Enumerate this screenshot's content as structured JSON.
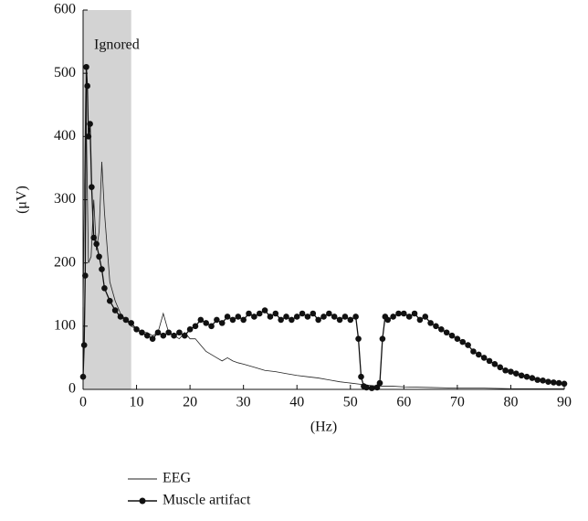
{
  "chart_data": {
    "type": "line",
    "xlabel": "(Hz)",
    "ylabel": "(μV)",
    "shaded_region": {
      "x": [
        0,
        9
      ],
      "label": "Ignored",
      "color": "#d3d3d3"
    },
    "xlim": [
      0,
      90
    ],
    "xticks": [
      0,
      10,
      20,
      30,
      40,
      50,
      60,
      70,
      80,
      90
    ],
    "ylim": [
      0,
      600
    ],
    "yticks": [
      0,
      100,
      200,
      300,
      400,
      500,
      600
    ],
    "series": [
      {
        "name": "EEG",
        "color": "#222222",
        "marker": false,
        "x": [
          0,
          0.5,
          1,
          1.5,
          2,
          2.5,
          3,
          3.5,
          4,
          5,
          6,
          7,
          8,
          9,
          10,
          11,
          12,
          13,
          14,
          15,
          16,
          17,
          18,
          19,
          20,
          21,
          22,
          23,
          24,
          25,
          26,
          27,
          28,
          29,
          30,
          32,
          34,
          36,
          38,
          40,
          42,
          44,
          46,
          48,
          50,
          52,
          54,
          56,
          58,
          60,
          65,
          70,
          75,
          80,
          85,
          90
        ],
        "values": [
          130,
          480,
          200,
          210,
          300,
          220,
          250,
          360,
          280,
          170,
          140,
          120,
          110,
          100,
          95,
          90,
          90,
          85,
          90,
          120,
          90,
          85,
          80,
          90,
          80,
          80,
          70,
          60,
          55,
          50,
          45,
          50,
          45,
          42,
          40,
          35,
          30,
          28,
          25,
          22,
          20,
          18,
          15,
          12,
          10,
          8,
          6,
          5,
          5,
          4,
          3,
          2,
          2,
          1,
          1,
          1
        ]
      },
      {
        "name": "Muscle artifact",
        "color": "#111111",
        "marker": true,
        "x": [
          0,
          0.2,
          0.4,
          0.6,
          0.8,
          1,
          1.3,
          1.6,
          2,
          2.5,
          3,
          3.5,
          4,
          5,
          6,
          7,
          8,
          9,
          10,
          11,
          12,
          13,
          14,
          15,
          16,
          17,
          18,
          19,
          20,
          21,
          22,
          23,
          24,
          25,
          26,
          27,
          28,
          29,
          30,
          31,
          32,
          33,
          34,
          35,
          36,
          37,
          38,
          39,
          40,
          41,
          42,
          43,
          44,
          45,
          46,
          47,
          48,
          49,
          50,
          51,
          51.5,
          52,
          52.5,
          53,
          54,
          55,
          55.5,
          56,
          56.5,
          57,
          58,
          59,
          60,
          61,
          62,
          63,
          64,
          65,
          66,
          67,
          68,
          69,
          70,
          71,
          72,
          73,
          74,
          75,
          76,
          77,
          78,
          79,
          80,
          81,
          82,
          83,
          84,
          85,
          86,
          87,
          88,
          89,
          90
        ],
        "values": [
          20,
          70,
          180,
          510,
          480,
          400,
          420,
          320,
          240,
          230,
          210,
          190,
          160,
          140,
          125,
          115,
          110,
          105,
          95,
          90,
          85,
          80,
          90,
          85,
          90,
          85,
          90,
          85,
          95,
          100,
          110,
          105,
          100,
          110,
          105,
          115,
          110,
          115,
          110,
          120,
          115,
          120,
          125,
          115,
          120,
          110,
          115,
          110,
          115,
          120,
          115,
          120,
          110,
          115,
          120,
          115,
          110,
          115,
          110,
          115,
          80,
          20,
          5,
          3,
          2,
          3,
          10,
          80,
          115,
          110,
          115,
          120,
          120,
          115,
          120,
          110,
          115,
          105,
          100,
          95,
          90,
          85,
          80,
          75,
          70,
          60,
          55,
          50,
          45,
          40,
          35,
          30,
          28,
          25,
          22,
          20,
          18,
          15,
          14,
          12,
          11,
          10,
          9
        ]
      }
    ]
  }
}
